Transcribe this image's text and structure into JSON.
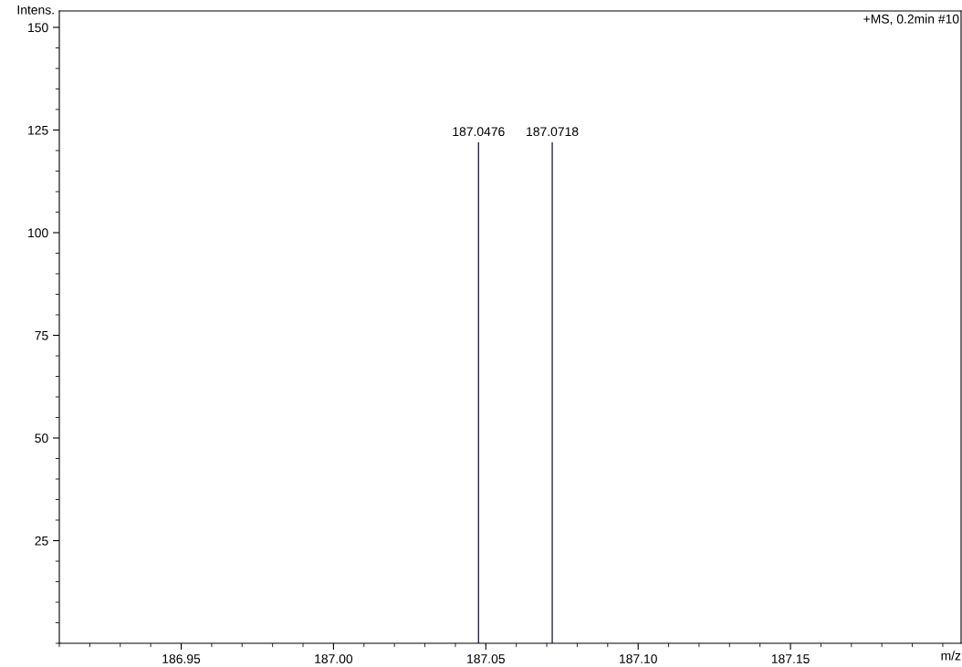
{
  "chart_data": {
    "type": "bar",
    "x": [
      187.0476,
      187.0718
    ],
    "values": [
      122,
      122
    ],
    "color": "#20203a",
    "xlabel": "m/z",
    "ylabel": "Intens.",
    "annotations": [
      "+MS, 0.2min #10",
      {
        "text": "187.0476",
        "x": 187.0476,
        "y": 122
      },
      {
        "text": "187.0718",
        "x": 187.0718,
        "y": 122
      }
    ],
    "xlim": [
      186.91,
      187.206
    ],
    "xticks": [
      {
        "value": 186.95,
        "label": "186.95"
      },
      {
        "value": 187.0,
        "label": "187.00"
      },
      {
        "value": 187.05,
        "label": "187.05"
      },
      {
        "value": 187.1,
        "label": "187.10"
      },
      {
        "value": 187.15,
        "label": "187.15"
      }
    ],
    "ylim": [
      0,
      154
    ],
    "yticks": [
      25,
      50,
      75,
      100,
      125,
      150
    ],
    "grid": false,
    "legend": false
  }
}
